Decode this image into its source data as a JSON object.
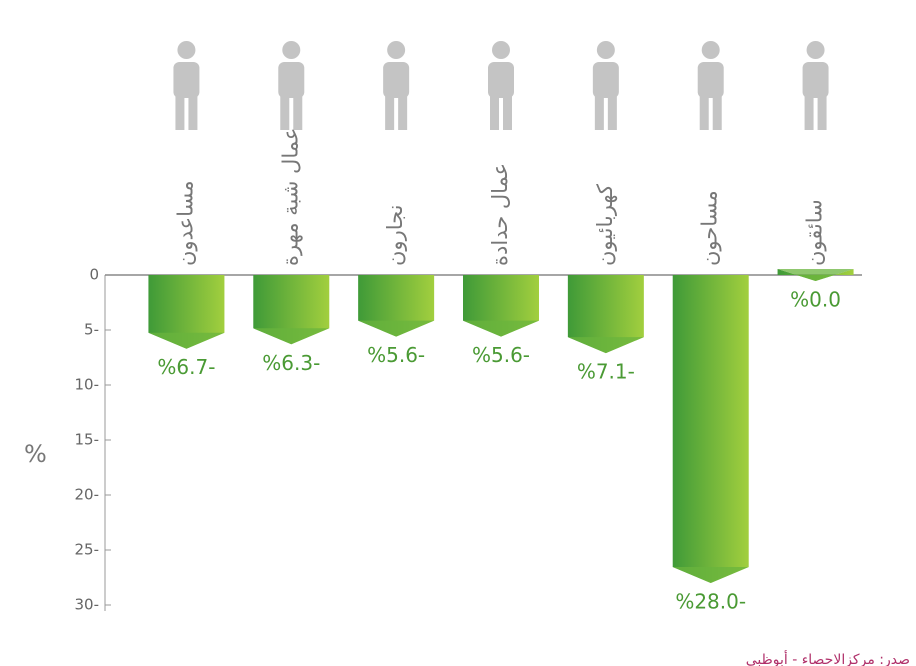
{
  "chart_data": {
    "type": "bar",
    "categories": [
      "مساعدون",
      "عمال شبة مهرة",
      "نجارون",
      "عمال حدادة",
      "كهربائيون",
      "مساحون",
      "سائقون"
    ],
    "values": [
      -6.7,
      -6.3,
      -5.6,
      -5.6,
      -7.1,
      -28.0,
      0.0
    ],
    "value_labels": [
      "%6.7-",
      "%6.3-",
      "%5.6-",
      "%5.6-",
      "%7.1-",
      "%28.0-",
      "%0.0"
    ],
    "color": "#6ab43e",
    "y_label": "%",
    "ylim": [
      -30,
      0
    ],
    "yticks": [
      0,
      {
        "value": -5,
        "label": "5-"
      },
      {
        "value": -10,
        "label": "10-"
      },
      {
        "value": -15,
        "label": "15-"
      },
      {
        "value": -20,
        "label": "20-"
      },
      {
        "value": -25,
        "label": "25-"
      },
      {
        "value": -30,
        "label": "30-"
      }
    ],
    "source": "صدر: مركزالاحصاء - أبوظبي"
  }
}
